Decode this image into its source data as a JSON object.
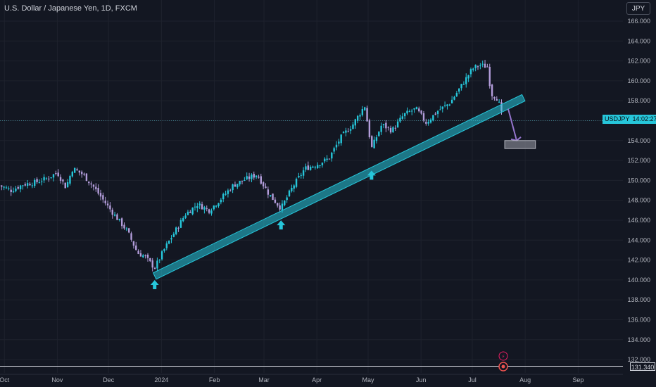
{
  "header": {
    "title": "U.S. Dollar / Japanese Yen, 1D, FXCM"
  },
  "toolbar": {
    "currency_label": "JPY"
  },
  "price_tag": {
    "symbol": "USDJPY",
    "time": "14:02:27",
    "color": "#26c6da"
  },
  "ref_tag": {
    "value": "131.340"
  },
  "colors": {
    "background": "#131722",
    "up": "#26c6da",
    "down": "#b39ddb",
    "trendline": "#26c6da",
    "arrow": "#9575cd"
  },
  "chart_data": {
    "type": "candlestick",
    "symbol": "USDJPY",
    "interval": "1D",
    "ylim": [
      131.0,
      167.0
    ],
    "y_ticks": [
      "166.000",
      "164.000",
      "162.000",
      "160.000",
      "158.000",
      "156.000",
      "154.000",
      "152.000",
      "150.000",
      "148.000",
      "146.000",
      "144.000",
      "142.000",
      "140.000",
      "138.000",
      "136.000",
      "134.000",
      "132.000"
    ],
    "x_ticks": [
      "Oct",
      "Nov",
      "Dec",
      "2024",
      "Feb",
      "Mar",
      "Apr",
      "May",
      "Jun",
      "Jul",
      "Aug",
      "Sep"
    ],
    "x_tick_dates": [
      "2023-10-01",
      "2023-11-01",
      "2023-12-01",
      "2024-01-01",
      "2024-02-01",
      "2024-03-01",
      "2024-04-01",
      "2024-05-01",
      "2024-06-01",
      "2024-07-01",
      "2024-08-01",
      "2024-09-01"
    ],
    "last_price": 156.0,
    "reference_line": 131.34,
    "series": [
      {
        "name": "USDJPY",
        "points": [
          {
            "date": "2023-09-28",
            "close": 149.5
          },
          {
            "date": "2023-10-05",
            "close": 149.0
          },
          {
            "date": "2023-10-12",
            "close": 149.6
          },
          {
            "date": "2023-10-19",
            "close": 149.8
          },
          {
            "date": "2023-10-26",
            "close": 150.2
          },
          {
            "date": "2023-11-01",
            "close": 150.8
          },
          {
            "date": "2023-11-06",
            "close": 149.3
          },
          {
            "date": "2023-11-10",
            "close": 151.2
          },
          {
            "date": "2023-11-16",
            "close": 150.6
          },
          {
            "date": "2023-11-22",
            "close": 149.4
          },
          {
            "date": "2023-11-28",
            "close": 148.0
          },
          {
            "date": "2023-12-01",
            "close": 147.3
          },
          {
            "date": "2023-12-06",
            "close": 146.2
          },
          {
            "date": "2023-12-12",
            "close": 144.9
          },
          {
            "date": "2023-12-18",
            "close": 142.7
          },
          {
            "date": "2023-12-22",
            "close": 142.4
          },
          {
            "date": "2023-12-28",
            "close": 141.2
          },
          {
            "date": "2024-01-03",
            "close": 143.2
          },
          {
            "date": "2024-01-09",
            "close": 144.9
          },
          {
            "date": "2024-01-15",
            "close": 146.6
          },
          {
            "date": "2024-01-22",
            "close": 147.6
          },
          {
            "date": "2024-01-29",
            "close": 147.0
          },
          {
            "date": "2024-02-05",
            "close": 148.2
          },
          {
            "date": "2024-02-12",
            "close": 149.5
          },
          {
            "date": "2024-02-19",
            "close": 150.1
          },
          {
            "date": "2024-02-26",
            "close": 150.6
          },
          {
            "date": "2024-03-04",
            "close": 148.6
          },
          {
            "date": "2024-03-11",
            "close": 147.2
          },
          {
            "date": "2024-03-18",
            "close": 149.4
          },
          {
            "date": "2024-03-25",
            "close": 151.2
          },
          {
            "date": "2024-04-01",
            "close": 151.6
          },
          {
            "date": "2024-04-08",
            "close": 152.2
          },
          {
            "date": "2024-04-15",
            "close": 154.3
          },
          {
            "date": "2024-04-22",
            "close": 155.6
          },
          {
            "date": "2024-04-29",
            "close": 157.5
          },
          {
            "date": "2024-05-03",
            "close": 153.2
          },
          {
            "date": "2024-05-09",
            "close": 155.6
          },
          {
            "date": "2024-05-15",
            "close": 155.0
          },
          {
            "date": "2024-05-22",
            "close": 156.6
          },
          {
            "date": "2024-05-29",
            "close": 157.2
          },
          {
            "date": "2024-06-04",
            "close": 155.8
          },
          {
            "date": "2024-06-11",
            "close": 157.0
          },
          {
            "date": "2024-06-18",
            "close": 157.8
          },
          {
            "date": "2024-06-25",
            "close": 159.6
          },
          {
            "date": "2024-07-01",
            "close": 161.2
          },
          {
            "date": "2024-07-05",
            "close": 161.6
          },
          {
            "date": "2024-07-10",
            "close": 161.4
          },
          {
            "date": "2024-07-12",
            "close": 158.7
          },
          {
            "date": "2024-07-16",
            "close": 158.2
          },
          {
            "date": "2024-07-18",
            "close": 156.8
          },
          {
            "date": "2024-07-19",
            "close": 156.0
          }
        ]
      }
    ],
    "trendline": {
      "start": {
        "date": "2023-12-28",
        "price": 140.4
      },
      "end": {
        "date": "2024-07-31",
        "price": 158.3
      }
    },
    "support_arrows": [
      {
        "date": "2023-12-28",
        "price": 139.5
      },
      {
        "date": "2024-03-11",
        "price": 145.5
      },
      {
        "date": "2024-05-03",
        "price": 150.5
      }
    ],
    "projection_arrow": {
      "from": {
        "date": "2024-07-22",
        "price": 157.2
      },
      "to": {
        "date": "2024-07-27",
        "price": 154.0
      }
    },
    "target_zone": {
      "start": "2024-07-20",
      "end": "2024-08-07",
      "low": 153.2,
      "high": 154.0
    }
  }
}
